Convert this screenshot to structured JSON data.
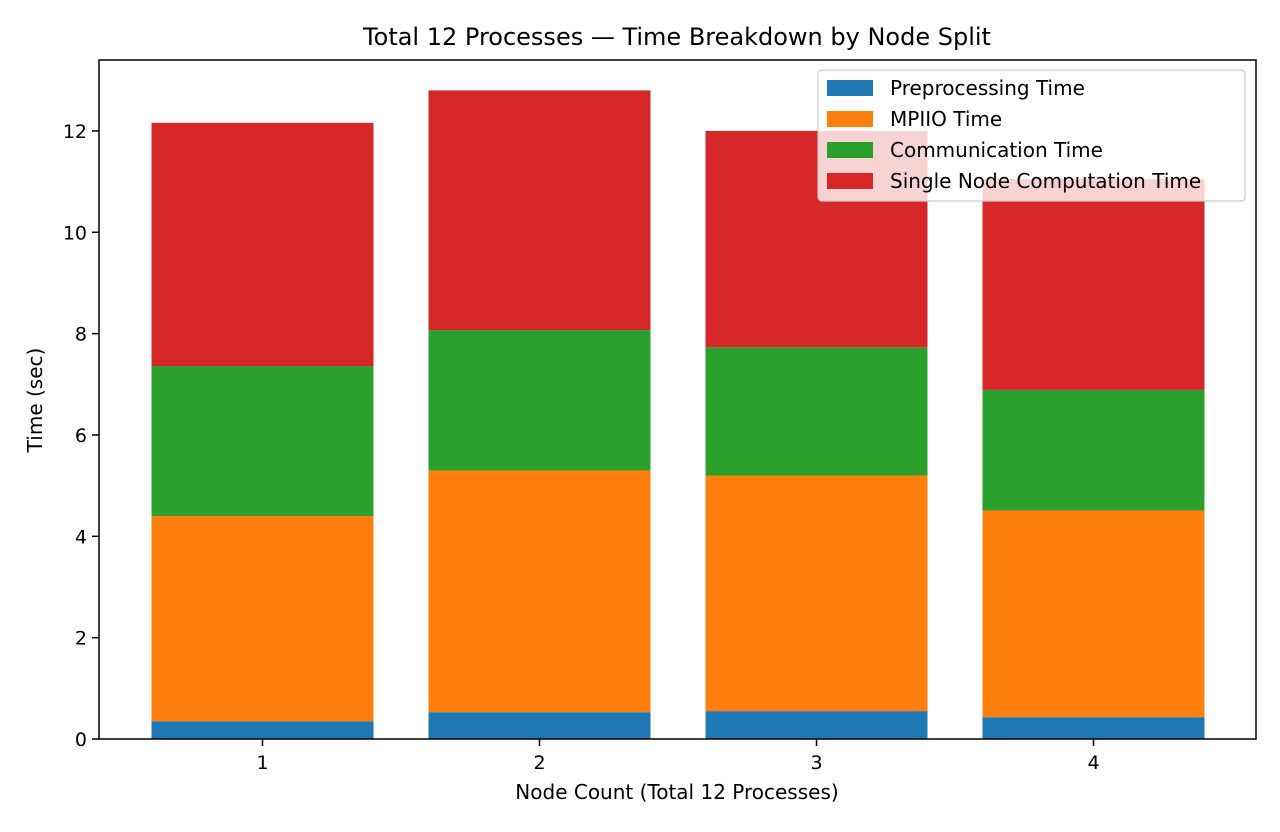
{
  "chart_data": {
    "type": "bar",
    "stacked": true,
    "title": "Total 12 Processes — Time Breakdown by Node Split",
    "xlabel": "Node Count (Total 12 Processes)",
    "ylabel": "Time (sec)",
    "categories": [
      "1",
      "2",
      "3",
      "4"
    ],
    "ylim": [
      0,
      13.4
    ],
    "yticks": [
      "0",
      "2",
      "4",
      "6",
      "8",
      "10",
      "12"
    ],
    "legend_position": "upper right",
    "grid": false,
    "series": [
      {
        "name": "Preprocessing Time",
        "color": "#1f77b4",
        "values": [
          0.35,
          0.53,
          0.55,
          0.43
        ]
      },
      {
        "name": "MPIIO Time",
        "color": "#ff7f0e",
        "values": [
          4.05,
          4.77,
          4.65,
          4.08
        ]
      },
      {
        "name": "Communication Time",
        "color": "#2ca02c",
        "values": [
          2.96,
          2.77,
          2.53,
          2.38
        ]
      },
      {
        "name": "Single Node Computation Time",
        "color": "#d62728",
        "values": [
          4.8,
          4.73,
          4.27,
          4.16
        ]
      }
    ]
  }
}
